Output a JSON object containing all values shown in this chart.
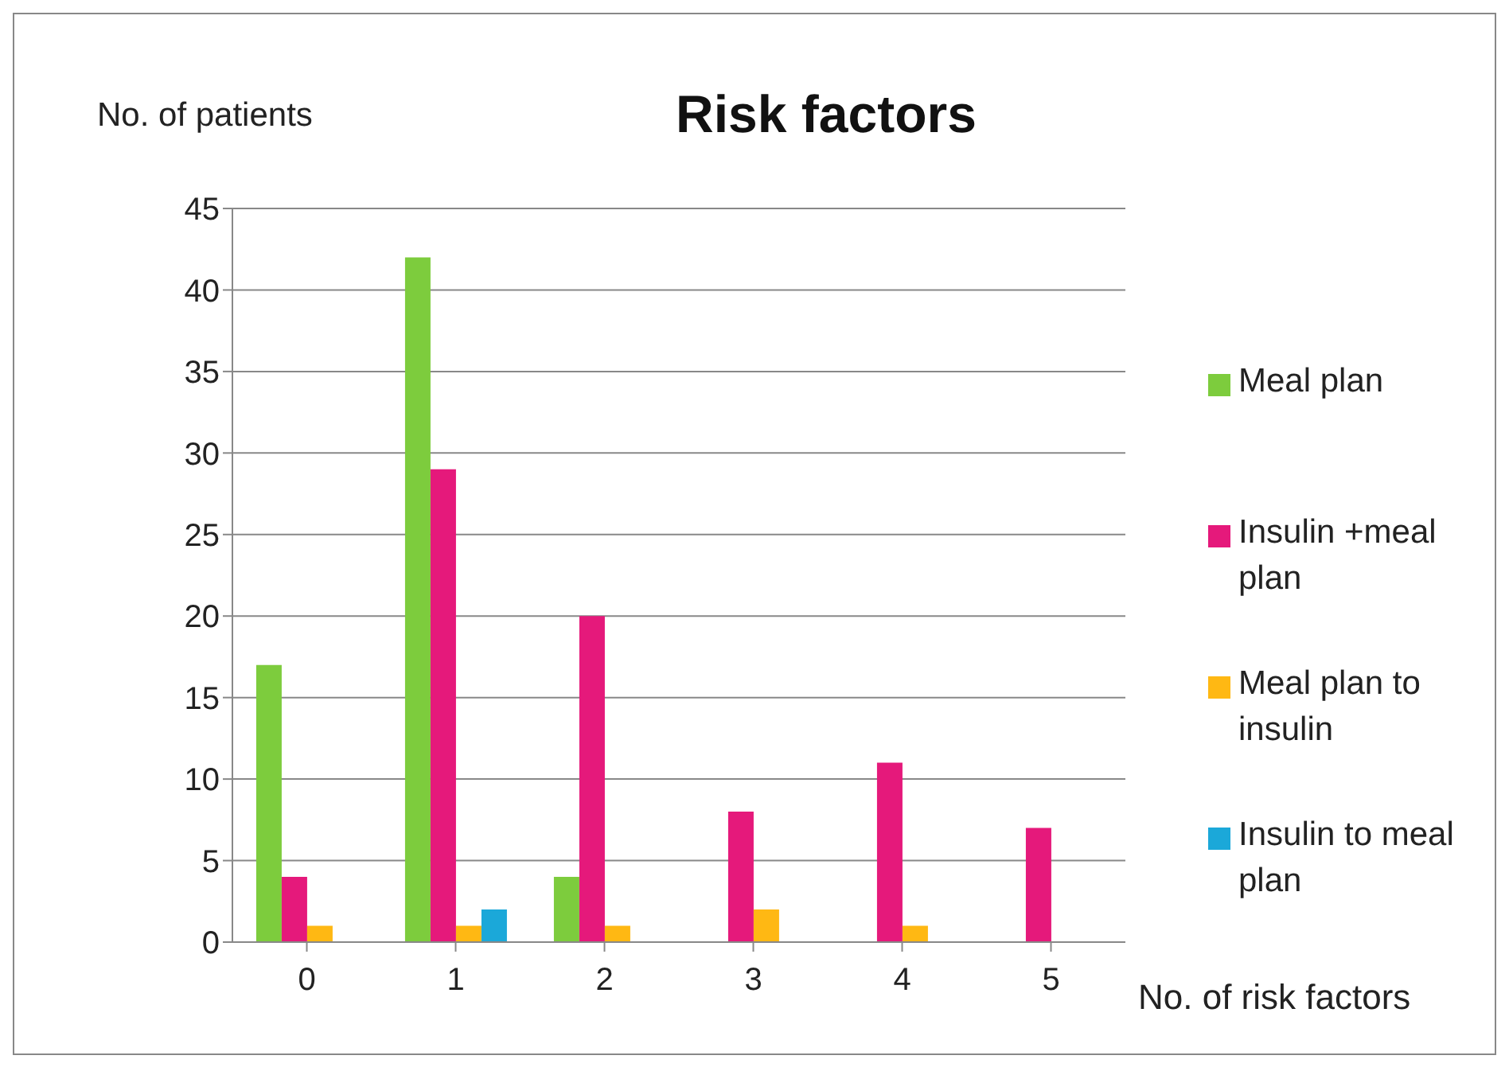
{
  "chart_data": {
    "type": "bar",
    "title": "Risk factors",
    "xlabel": "No. of risk factors",
    "ylabel": "No. of patients",
    "categories": [
      "0",
      "1",
      "2",
      "3",
      "4",
      "5"
    ],
    "series": [
      {
        "name": "Meal plan",
        "color": "#7dcc3d",
        "values": [
          17,
          42,
          4,
          0,
          0,
          0
        ]
      },
      {
        "name": "Insulin +meal plan",
        "color": "#e5197b",
        "values": [
          4,
          29,
          20,
          8,
          11,
          7
        ]
      },
      {
        "name": "Meal plan to insulin",
        "color": "#ffb813",
        "values": [
          1,
          1,
          1,
          2,
          1,
          0
        ]
      },
      {
        "name": "Insulin to meal plan",
        "color": "#1ba8d9",
        "values": [
          0,
          2,
          0,
          0,
          0,
          0
        ]
      }
    ],
    "ylim": [
      0,
      45
    ],
    "yticks": [
      0,
      5,
      10,
      15,
      20,
      25,
      30,
      35,
      40,
      45
    ],
    "grid": "y",
    "legend": "right"
  }
}
